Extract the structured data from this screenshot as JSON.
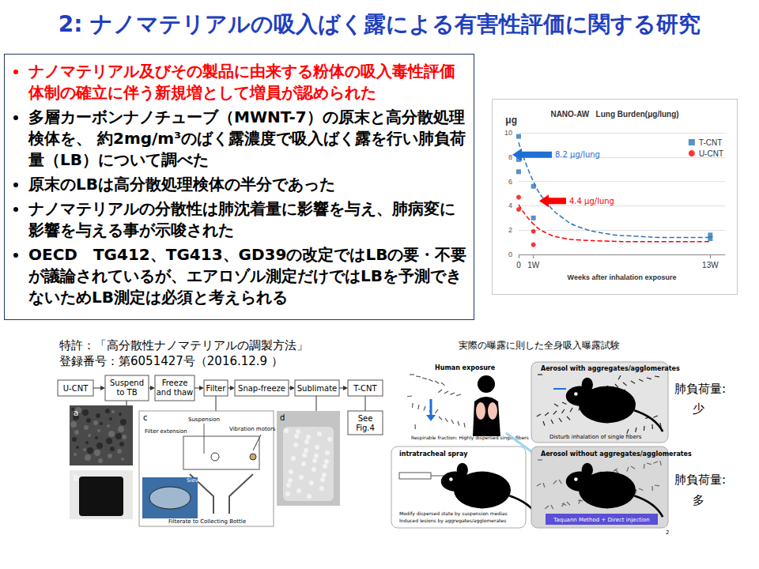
{
  "title": "2: ナノマテリアルの吸入ばく露による有害性評価に関する研究",
  "bullets": [
    {
      "text": "ナノマテリアル及びその製品に由来する粉体の吸入毒性評価体制の確立に伴う新規増として増員が認められた",
      "color": "#ff0000"
    },
    {
      "text": "多層カーボンナノチューブ（MWNT-7）の原末と高分散処理検体を、 約2mg/m³のばく露濃度で吸入ばく露を行い肺負荷量（LB）について調べた"
    },
    {
      "text": "原末のLBは高分散処理検体の半分であった"
    },
    {
      "text": "ナノマテリアルの分散性は肺沈着量に影響を与え、肺病変に影響を与える事が示唆された"
    },
    {
      "text": "OECD　TG412、TG413、GD39の改定ではLBの要・不要が議論されているが、エアロゾル測定だけではLBを予測できないためLB測定は必須と考えられる"
    }
  ],
  "chart_data": {
    "type": "scatter",
    "title": "NANO-AW   Lung Burden(μg/lung)",
    "x_label": "Weeks after inhalation exposure",
    "y_label": "μg",
    "xlim": [
      0,
      14
    ],
    "xticks": [
      0,
      {
        "value": 1,
        "label": "1W"
      },
      {
        "value": 13,
        "label": "13W"
      }
    ],
    "ylim": [
      0,
      10
    ],
    "yticks": [
      0,
      2,
      4,
      6,
      8,
      10
    ],
    "grid": true,
    "legend": "upper right",
    "series": [
      {
        "name": "T-CNT",
        "color": "#2e75b6",
        "marker": "square",
        "x": [
          0,
          0,
          0,
          1,
          1,
          13,
          13
        ],
        "values": [
          9.7,
          7.8,
          6.8,
          5.6,
          3.0,
          1.6,
          1.3
        ],
        "fit": {
          "x": [
            0,
            1,
            2,
            3,
            4,
            6,
            8,
            10,
            13
          ],
          "values": [
            9.2,
            6.0,
            4.1,
            3.0,
            2.3,
            1.7,
            1.5,
            1.4,
            1.4
          ],
          "line_style": "dashed"
        }
      },
      {
        "name": "U-CNT",
        "color": "#ff0000",
        "marker": "circle",
        "x": [
          0,
          0,
          1,
          1
        ],
        "values": [
          4.7,
          3.7,
          1.9,
          0.8
        ],
        "fit": {
          "x": [
            0,
            1,
            2,
            3,
            4,
            6,
            8,
            10,
            13
          ],
          "values": [
            4.1,
            2.5,
            1.7,
            1.35,
            1.2,
            1.1,
            1.05,
            1.05,
            1.05
          ],
          "line_style": "dashed"
        }
      }
    ],
    "annotations": [
      {
        "text": "8.2 μg/lung",
        "y": 8.2,
        "color": "#1f6fd6"
      },
      {
        "text": "4.4 μg/lung",
        "y": 4.4,
        "color": "#ff0000"
      }
    ]
  },
  "patent": {
    "title": "特許：「高分散性ナノマテリアルの調製方法」",
    "number": "登録番号：第6051427号（2016.12.9 ）"
  },
  "flow": {
    "steps": [
      [
        "U-CNT"
      ],
      [
        "Suspend",
        "to TB"
      ],
      [
        "Freeze",
        "and thaw"
      ],
      [
        "Filter"
      ],
      [
        "Snap-freeze"
      ],
      [
        "Sublimate"
      ],
      [
        "T-CNT"
      ]
    ],
    "see": [
      "See",
      "Fig.4"
    ],
    "photos": [
      "a",
      "b",
      "c",
      "d"
    ],
    "apparatus": [
      "Suspension",
      "Filter extension",
      "Vibration motors",
      "Sieve",
      "Filterate to Collecting Bottle"
    ]
  },
  "exposure_diagram": {
    "title": "実際の曝露に則した全身吸入曝露試験",
    "panels": [
      {
        "heading": "Human exposure",
        "notes": [
          "Respirable fraction: Highly dispersed single fibers"
        ]
      },
      {
        "heading": "Aerosol with aggregates/agglomerates",
        "notes": [
          "Disturb inhalation of single fibers"
        ]
      },
      {
        "heading": "intratracheal spray",
        "notes": [
          "Modify dispersed state by suspension medias",
          "Induced lesions by aggregates/agglomerates"
        ]
      },
      {
        "heading": "Aerosol without aggregates/agglomerates",
        "notes": [
          "Taquann Method + Direct injection"
        ]
      }
    ],
    "lung_burden": [
      {
        "label": "肺負荷量:",
        "value": "少"
      },
      {
        "label": "肺負荷量:",
        "value": "多"
      }
    ]
  },
  "page_number": 2
}
